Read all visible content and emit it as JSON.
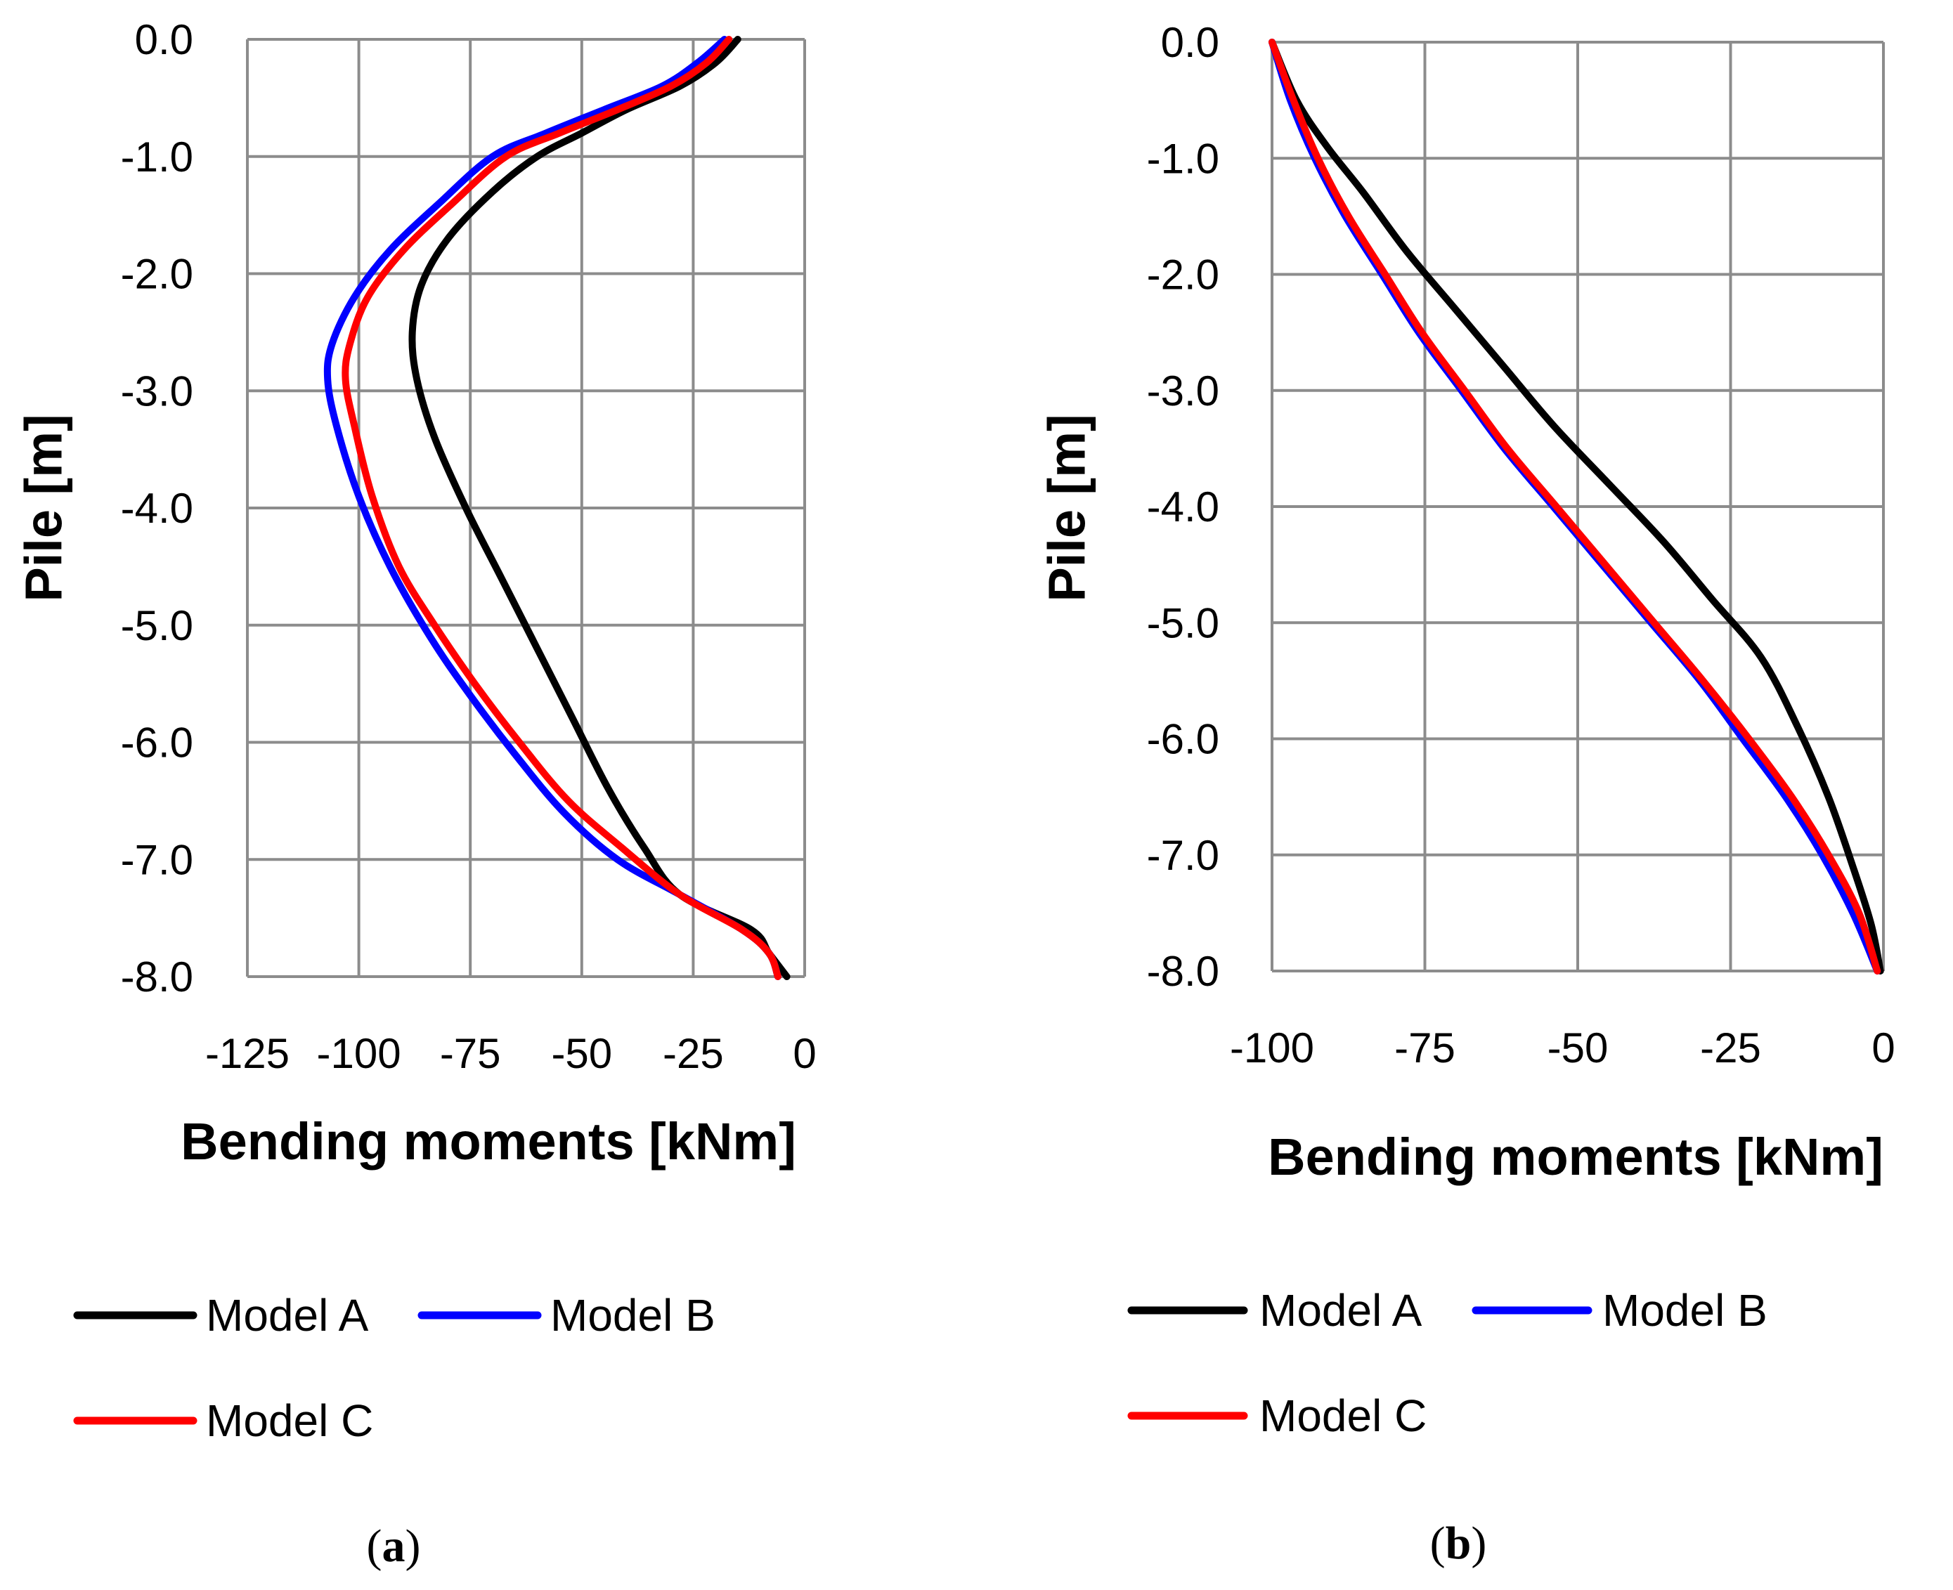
{
  "chart_data": [
    {
      "panel": "a",
      "type": "line",
      "xlabel": "Bending moments [kNm]",
      "ylabel": "Pile [m]",
      "xlim": [
        -125,
        0
      ],
      "ylim": [
        -8.0,
        0.0
      ],
      "x_ticks": [
        -125,
        -100,
        -75,
        -50,
        -25,
        0
      ],
      "x_tick_labels": [
        "-125",
        "-100",
        "-75",
        "-50",
        "-25",
        "0"
      ],
      "y_ticks": [
        0,
        -1,
        -2,
        -3,
        -4,
        -5,
        -6,
        -7,
        -8
      ],
      "y_tick_labels": [
        "0.0",
        "-1.0",
        "-2.0",
        "-3.0",
        "-4.0",
        "-5.0",
        "-6.0",
        "-7.0",
        "-8.0"
      ],
      "grid": true,
      "legend_position": "bottom",
      "series": [
        {
          "name": "Model A",
          "color": "#000000",
          "points": [
            [
              -15,
              0.0
            ],
            [
              -20,
              -0.2
            ],
            [
              -28,
              -0.4
            ],
            [
              -40,
              -0.6
            ],
            [
              -50,
              -0.8
            ],
            [
              -60,
              -1.0
            ],
            [
              -70,
              -1.3
            ],
            [
              -80,
              -1.7
            ],
            [
              -86,
              -2.1
            ],
            [
              -88,
              -2.5
            ],
            [
              -87,
              -2.9
            ],
            [
              -83,
              -3.4
            ],
            [
              -76,
              -4.0
            ],
            [
              -68,
              -4.6
            ],
            [
              -60,
              -5.2
            ],
            [
              -52,
              -5.8
            ],
            [
              -44,
              -6.4
            ],
            [
              -36,
              -6.9
            ],
            [
              -28,
              -7.3
            ],
            [
              -12,
              -7.6
            ],
            [
              -8,
              -7.8
            ],
            [
              -4,
              -8.0
            ]
          ]
        },
        {
          "name": "Model B",
          "color": "#0000ff",
          "points": [
            [
              -18,
              0.0
            ],
            [
              -24,
              -0.2
            ],
            [
              -32,
              -0.4
            ],
            [
              -45,
              -0.6
            ],
            [
              -58,
              -0.8
            ],
            [
              -70,
              -1.0
            ],
            [
              -82,
              -1.4
            ],
            [
              -93,
              -1.8
            ],
            [
              -101,
              -2.2
            ],
            [
              -106,
              -2.6
            ],
            [
              -107,
              -2.9
            ],
            [
              -105,
              -3.3
            ],
            [
              -100,
              -3.9
            ],
            [
              -93,
              -4.5
            ],
            [
              -84,
              -5.1
            ],
            [
              -75,
              -5.6
            ],
            [
              -65,
              -6.1
            ],
            [
              -54,
              -6.6
            ],
            [
              -42,
              -7.0
            ],
            [
              -28,
              -7.3
            ],
            [
              -14,
              -7.6
            ],
            [
              -8,
              -7.8
            ],
            [
              -6,
              -8.0
            ]
          ]
        },
        {
          "name": "Model C",
          "color": "#ff0000",
          "points": [
            [
              -17,
              0.0
            ],
            [
              -22,
              -0.2
            ],
            [
              -30,
              -0.4
            ],
            [
              -42,
              -0.6
            ],
            [
              -55,
              -0.8
            ],
            [
              -67,
              -1.0
            ],
            [
              -79,
              -1.4
            ],
            [
              -90,
              -1.8
            ],
            [
              -98,
              -2.2
            ],
            [
              -102,
              -2.6
            ],
            [
              -103,
              -2.9
            ],
            [
              -101,
              -3.3
            ],
            [
              -97,
              -3.9
            ],
            [
              -91,
              -4.5
            ],
            [
              -83,
              -5.0
            ],
            [
              -74,
              -5.5
            ],
            [
              -64,
              -6.0
            ],
            [
              -53,
              -6.5
            ],
            [
              -41,
              -6.9
            ],
            [
              -28,
              -7.3
            ],
            [
              -14,
              -7.6
            ],
            [
              -8,
              -7.8
            ],
            [
              -6,
              -8.0
            ]
          ]
        }
      ],
      "legend": [
        "Model A",
        "Model B",
        "Model C"
      ],
      "caption_prefix": "(",
      "caption_letter": "a",
      "caption_suffix": ")"
    },
    {
      "panel": "b",
      "type": "line",
      "xlabel": "Bending moments [kNm]",
      "ylabel": "Pile [m]",
      "xlim": [
        -100,
        0
      ],
      "ylim": [
        -8.0,
        0.0
      ],
      "x_ticks": [
        -100,
        -75,
        -50,
        -25,
        0
      ],
      "x_tick_labels": [
        "-100",
        "-75",
        "-50",
        "-25",
        "0"
      ],
      "y_ticks": [
        0,
        -1,
        -2,
        -3,
        -4,
        -5,
        -6,
        -7,
        -8
      ],
      "y_tick_labels": [
        "0.0",
        "-1.0",
        "-2.0",
        "-3.0",
        "-4.0",
        "-5.0",
        "-6.0",
        "-7.0",
        "-8.0"
      ],
      "grid": true,
      "legend_position": "bottom",
      "series": [
        {
          "name": "Model A",
          "color": "#000000",
          "points": [
            [
              -100,
              0.0
            ],
            [
              -96,
              -0.5
            ],
            [
              -91,
              -0.9
            ],
            [
              -85,
              -1.3
            ],
            [
              -78,
              -1.8
            ],
            [
              -70,
              -2.3
            ],
            [
              -62,
              -2.8
            ],
            [
              -54,
              -3.3
            ],
            [
              -45,
              -3.8
            ],
            [
              -36,
              -4.3
            ],
            [
              -28,
              -4.8
            ],
            [
              -20,
              -5.3
            ],
            [
              -14,
              -5.9
            ],
            [
              -9,
              -6.5
            ],
            [
              -5,
              -7.1
            ],
            [
              -2,
              -7.6
            ],
            [
              -0.5,
              -8.0
            ]
          ]
        },
        {
          "name": "Model B",
          "color": "#0000ff",
          "points": [
            [
              -100,
              0.0
            ],
            [
              -97,
              -0.5
            ],
            [
              -93,
              -1.0
            ],
            [
              -88,
              -1.5
            ],
            [
              -82,
              -2.0
            ],
            [
              -76,
              -2.5
            ],
            [
              -69,
              -3.0
            ],
            [
              -62,
              -3.5
            ],
            [
              -54,
              -4.0
            ],
            [
              -46,
              -4.5
            ],
            [
              -38,
              -5.0
            ],
            [
              -30,
              -5.5
            ],
            [
              -23,
              -6.0
            ],
            [
              -16,
              -6.5
            ],
            [
              -10,
              -7.0
            ],
            [
              -5,
              -7.5
            ],
            [
              -1,
              -8.0
            ]
          ]
        },
        {
          "name": "Model C",
          "color": "#ff0000",
          "points": [
            [
              -100,
              0.0
            ],
            [
              -96.5,
              -0.5
            ],
            [
              -92.5,
              -1.0
            ],
            [
              -87.5,
              -1.5
            ],
            [
              -81.5,
              -2.0
            ],
            [
              -75.5,
              -2.5
            ],
            [
              -68.5,
              -3.0
            ],
            [
              -61.5,
              -3.5
            ],
            [
              -53.5,
              -4.0
            ],
            [
              -45.5,
              -4.5
            ],
            [
              -37.5,
              -5.0
            ],
            [
              -29.5,
              -5.5
            ],
            [
              -22,
              -6.0
            ],
            [
              -15,
              -6.5
            ],
            [
              -9,
              -7.0
            ],
            [
              -4,
              -7.5
            ],
            [
              -1,
              -8.0
            ]
          ]
        }
      ],
      "legend": [
        "Model A",
        "Model B",
        "Model C"
      ],
      "caption_prefix": "(",
      "caption_letter": "b",
      "caption_suffix": ")"
    }
  ]
}
